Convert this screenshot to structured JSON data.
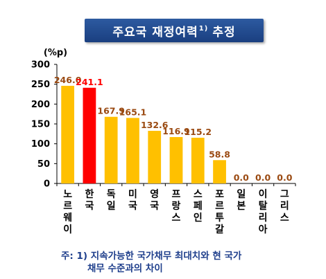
{
  "title": {
    "main": "주요국 재정여력",
    "sup": "1)",
    "tail": "추정"
  },
  "chart_data": {
    "type": "bar",
    "unit_label": "(%p)",
    "categories": [
      "노르웨이",
      "한국",
      "독일",
      "미국",
      "영국",
      "프랑스",
      "스페인",
      "포르투갈",
      "일본",
      "이탈리아",
      "그리스"
    ],
    "values": [
      246.0,
      241.1,
      167.9,
      165.1,
      132.6,
      116.9,
      115.2,
      58.8,
      0.0,
      0.0,
      0.0
    ],
    "value_labels": [
      "246.0",
      "241.1",
      "167.9",
      "165.1",
      "132.6",
      "116.9",
      "115.2",
      "58.8",
      "0.0",
      "0.0",
      "0.0"
    ],
    "highlight_index": 1,
    "colors": {
      "bar": "#ffc000",
      "highlight": "#ff0000",
      "label": "#9a4a12",
      "highlight_label": "#ff0000"
    },
    "ylim": [
      0,
      300
    ],
    "yticks": [
      "0",
      "50",
      "100",
      "150",
      "200",
      "250",
      "300"
    ],
    "ytick_values": [
      0,
      50,
      100,
      150,
      200,
      250,
      300
    ]
  },
  "footnote": {
    "line1": "주: 1) 지속가능한 국가채무 최대치와 현 국가",
    "line2": "채무 수준과의 차이"
  }
}
